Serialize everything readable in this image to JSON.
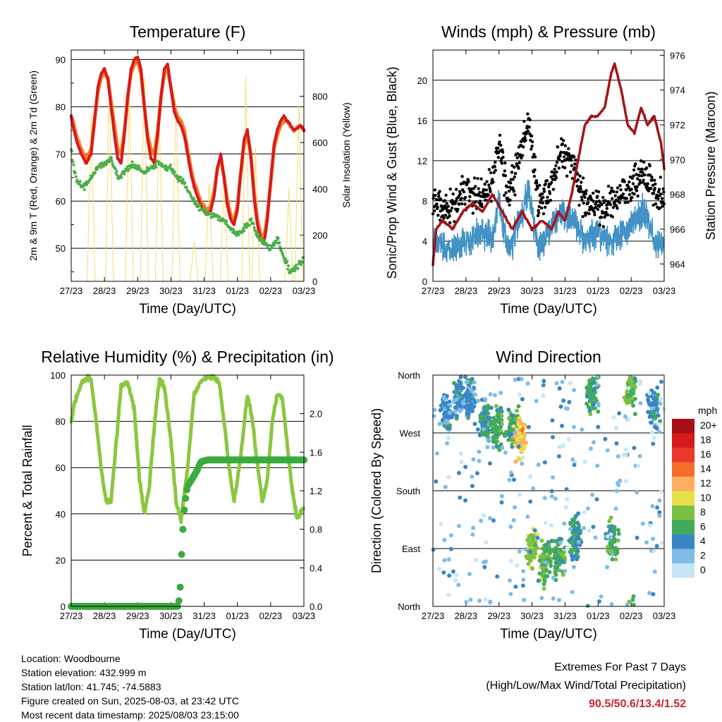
{
  "x_ticks": [
    "27/23",
    "28/23",
    "29/23",
    "30/23",
    "31/23",
    "01/23",
    "02/23",
    "03/23"
  ],
  "chart_data": [
    {
      "type": "line",
      "title": "Temperature (F)",
      "xlabel": "Time (Day/UTC)",
      "ylabel": "2m & 9m T (Red, Orange) & 2m Td (Green)",
      "y2label": "Solar Insolation (Yellow)",
      "ylim": [
        43,
        92
      ],
      "y_ticks": [
        50,
        60,
        70,
        80,
        90
      ],
      "y2lim": [
        0,
        1000
      ],
      "y2_ticks": [
        0,
        200,
        400,
        600,
        800
      ],
      "series": [
        {
          "name": "2m T",
          "color": "#d7191c",
          "x": [
            0,
            0.05,
            0.15,
            0.3,
            0.45,
            0.6,
            0.7,
            0.8,
            0.9,
            1.0,
            1.1,
            1.2,
            1.3,
            1.4,
            1.5,
            1.6,
            1.7,
            1.8,
            1.9,
            2.0,
            2.1,
            2.2,
            2.3,
            2.4,
            2.5,
            2.6,
            2.7,
            2.8,
            2.9,
            3.0,
            3.1,
            3.2,
            3.3,
            3.4,
            3.5,
            3.6,
            3.7,
            3.8,
            3.9,
            4.0,
            4.1,
            4.2,
            4.3,
            4.4,
            4.5,
            4.6,
            4.7,
            4.8,
            4.9,
            5.0,
            5.1,
            5.2,
            5.3,
            5.4,
            5.5,
            5.6,
            5.7,
            5.8,
            5.9,
            6.0,
            6.1,
            6.2,
            6.3,
            6.4,
            6.5,
            6.6,
            6.7,
            6.8,
            6.9,
            7.0
          ],
          "y": [
            78,
            76,
            73,
            70,
            68,
            70,
            77,
            84,
            87,
            88,
            86,
            80,
            74,
            69,
            68,
            74,
            82,
            88,
            90,
            90.5,
            88,
            80,
            73,
            69,
            68,
            74,
            82,
            88,
            89,
            84,
            79,
            77,
            76,
            74,
            70,
            66,
            63,
            61,
            59,
            58,
            57,
            58,
            61,
            67,
            70,
            65,
            59,
            56,
            55,
            58,
            66,
            73,
            75,
            70,
            61,
            55,
            52,
            51,
            56,
            64,
            72,
            75,
            77,
            78,
            77,
            76,
            75,
            75.5,
            76,
            75
          ]
        },
        {
          "name": "9m T",
          "color": "#f67e28",
          "x": [
            0,
            0.05,
            0.15,
            0.3,
            0.45,
            0.6,
            0.7,
            0.8,
            0.9,
            1.0,
            1.1,
            1.2,
            1.3,
            1.4,
            1.5,
            1.6,
            1.7,
            1.8,
            1.9,
            2.0,
            2.1,
            2.2,
            2.3,
            2.4,
            2.5,
            2.6,
            2.7,
            2.8,
            2.9,
            3.0,
            3.1,
            3.2,
            3.3,
            3.4,
            3.5,
            3.6,
            3.7,
            3.8,
            3.9,
            4.0,
            4.1,
            4.2,
            4.3,
            4.4,
            4.5,
            4.6,
            4.7,
            4.8,
            4.9,
            5.0,
            5.1,
            5.2,
            5.3,
            5.4,
            5.5,
            5.6,
            5.7,
            5.8,
            5.9,
            6.0,
            6.1,
            6.2,
            6.3,
            6.4,
            6.5,
            6.6,
            6.7,
            6.8,
            6.9,
            7.0
          ],
          "y": [
            78,
            77,
            74,
            71,
            69,
            71,
            77,
            83,
            86,
            87,
            86,
            81,
            76,
            71,
            70,
            75,
            82,
            87,
            89,
            89.5,
            87,
            80,
            74,
            71,
            70,
            75,
            82,
            87,
            88,
            84,
            80,
            78,
            77,
            75,
            71,
            67,
            64,
            62,
            60,
            59,
            58,
            59,
            62,
            67,
            69,
            65,
            60,
            57,
            56,
            59,
            66,
            72,
            74,
            70,
            62,
            56,
            53,
            52,
            57,
            64,
            71,
            74,
            76,
            77,
            77,
            76,
            75,
            75.5,
            76,
            75
          ]
        },
        {
          "name": "2m Td",
          "color": "#4daf4a",
          "x": [
            0,
            0.1,
            0.2,
            0.4,
            0.6,
            0.8,
            1.0,
            1.2,
            1.4,
            1.6,
            1.8,
            2.0,
            2.2,
            2.4,
            2.6,
            2.8,
            3.0,
            3.2,
            3.4,
            3.6,
            3.8,
            4.0,
            4.2,
            4.4,
            4.6,
            4.8,
            5.0,
            5.2,
            5.4,
            5.6,
            5.8,
            6.0,
            6.2,
            6.4,
            6.6,
            6.8,
            7.0
          ],
          "y": [
            71,
            66,
            64,
            63,
            65,
            67,
            68,
            69,
            65,
            66,
            68,
            67,
            66,
            67,
            68,
            67,
            67,
            65,
            64,
            61,
            59,
            58,
            57,
            57,
            56,
            54,
            53,
            54,
            56,
            53,
            51,
            50,
            52,
            48,
            45,
            46,
            48
          ]
        },
        {
          "name": "Solar Insolation",
          "color": "#f7dc6f",
          "axis": "y2",
          "peaks": [
            [
              0.6,
              740
            ],
            [
              1.15,
              920
            ],
            [
              1.75,
              880
            ],
            [
              2.2,
              960
            ],
            [
              2.65,
              780
            ],
            [
              3.15,
              860
            ],
            [
              3.7,
              190
            ],
            [
              4.15,
              480
            ],
            [
              4.6,
              500
            ],
            [
              5.25,
              920
            ],
            [
              5.55,
              580
            ],
            [
              6.55,
              420
            ],
            [
              6.85,
              860
            ]
          ]
        }
      ]
    },
    {
      "type": "line",
      "title": "Winds (mph) & Pressure (mb)",
      "xlabel": "Time (Day/UTC)",
      "ylabel": "Sonic/Prop Wind & Gust (Blue, Black)",
      "y2label": "Station Pressure (Maroon)",
      "ylim": [
        0,
        23
      ],
      "y_ticks": [
        0,
        4,
        8,
        12,
        16,
        20
      ],
      "y2lim": [
        963,
        976.3
      ],
      "y2_ticks": [
        964,
        966,
        968,
        970,
        972,
        974,
        976
      ],
      "series": [
        {
          "name": "Wind",
          "color": "#4292c6",
          "x": [
            0,
            0.5,
            1.0,
            1.5,
            1.8,
            2.0,
            2.3,
            2.5,
            2.9,
            3.2,
            3.5,
            3.9,
            4.3,
            4.6,
            5.0,
            5.4,
            5.8,
            6.1,
            6.4,
            6.7,
            7.0
          ],
          "y": [
            4,
            3,
            4,
            5,
            4,
            8,
            3,
            5,
            9,
            3,
            5,
            7,
            6,
            4,
            5,
            4,
            5,
            6,
            7,
            4,
            4
          ]
        },
        {
          "name": "Gust",
          "color": "#000000",
          "x": [
            0,
            0.5,
            1.0,
            1.5,
            1.8,
            2.0,
            2.3,
            2.5,
            2.9,
            3.2,
            3.5,
            3.9,
            4.3,
            4.6,
            5.0,
            5.4,
            5.8,
            6.1,
            6.4,
            6.7,
            7.0
          ],
          "y": [
            8,
            7,
            9,
            8,
            10,
            14,
            8,
            11,
            16,
            8,
            9,
            13,
            11,
            8,
            7,
            8,
            9,
            10,
            11,
            9,
            8
          ]
        },
        {
          "name": "Pressure",
          "color": "#a3151a",
          "axis": "y2",
          "x": [
            0,
            0.1,
            0.3,
            0.6,
            0.9,
            1.2,
            1.5,
            1.8,
            2.1,
            2.4,
            2.7,
            3.0,
            3.3,
            3.6,
            3.8,
            4.0,
            4.2,
            4.4,
            4.6,
            4.8,
            5.0,
            5.2,
            5.4,
            5.5,
            5.7,
            5.9,
            6.1,
            6.3,
            6.5,
            6.7,
            6.9,
            7.0
          ],
          "y": [
            964,
            966,
            966.5,
            966,
            967,
            967.5,
            967,
            968,
            967,
            966,
            967,
            966,
            966.5,
            966,
            967,
            966.5,
            968,
            970,
            972,
            972.5,
            972.5,
            973,
            975,
            975.5,
            974,
            972,
            971.5,
            973,
            972,
            972.5,
            971,
            969.5
          ]
        }
      ]
    },
    {
      "type": "line",
      "title": "Relative Humidity (%) & Precipitation (in)",
      "xlabel": "Time (Day/UTC)",
      "ylabel": "Percent & Total Rainfall",
      "ylim": [
        0,
        100
      ],
      "y_ticks": [
        0,
        20,
        40,
        60,
        80,
        100
      ],
      "y2lim": [
        0,
        2.4
      ],
      "y2_ticks": [
        "0.0",
        "0.4",
        "0.8",
        "1.2",
        "1.6",
        "2.0"
      ],
      "series": [
        {
          "name": "Relative Humidity",
          "color": "#8cc63f",
          "x": [
            0,
            0.1,
            0.3,
            0.45,
            0.6,
            0.75,
            0.9,
            1.05,
            1.2,
            1.35,
            1.5,
            1.7,
            1.9,
            2.05,
            2.2,
            2.35,
            2.5,
            2.65,
            2.8,
            3.0,
            3.15,
            3.3,
            3.5,
            3.7,
            3.9,
            4.1,
            4.3,
            4.45,
            4.6,
            4.75,
            4.9,
            5.1,
            5.3,
            5.45,
            5.6,
            5.75,
            5.9,
            6.05,
            6.2,
            6.35,
            6.5,
            6.65,
            6.8,
            7.0
          ],
          "y": [
            80,
            88,
            96,
            99,
            98,
            80,
            60,
            45,
            46,
            70,
            95,
            97,
            85,
            55,
            40,
            52,
            78,
            98,
            95,
            72,
            46,
            37,
            60,
            92,
            97,
            99,
            99,
            97,
            80,
            60,
            45,
            65,
            92,
            80,
            62,
            45,
            55,
            80,
            92,
            90,
            70,
            50,
            38,
            43
          ]
        },
        {
          "name": "Total Precipitation",
          "color": "#3aab3f",
          "x": [
            0,
            3.2,
            3.27,
            3.3,
            3.35,
            3.4,
            3.45,
            3.5,
            3.6,
            3.7,
            3.8,
            3.9,
            4.1,
            4.5,
            5.0,
            6.0,
            7.0
          ],
          "y": [
            0,
            0,
            0.1,
            0.4,
            0.75,
            1.0,
            1.15,
            1.25,
            1.3,
            1.36,
            1.42,
            1.5,
            1.52,
            1.52,
            1.52,
            1.52,
            1.52
          ]
        }
      ]
    },
    {
      "type": "scatter",
      "title": "Wind Direction",
      "xlabel": "Time (Day/UTC)",
      "ylabel": "Direction (Colored By Speed)",
      "y_ticks": [
        "North",
        "West",
        "South",
        "East",
        "North"
      ],
      "legend": {
        "title": "mph",
        "position": "right",
        "labels": [
          "20+",
          "18",
          "16",
          "14",
          "12",
          "10",
          "8",
          "6",
          "4",
          "2",
          "0"
        ],
        "colors": [
          "#a50f15",
          "#d7191c",
          "#e8392b",
          "#f46d2b",
          "#fdae61",
          "#e6e14a",
          "#7bc043",
          "#41ab5d",
          "#3a86c4",
          "#7fbce8",
          "#c6e6f7"
        ]
      },
      "clusters": [
        {
          "x": 0.4,
          "dir": 300,
          "speed": 3
        },
        {
          "x": 0.8,
          "dir": 330,
          "speed": 4
        },
        {
          "x": 1.1,
          "dir": 320,
          "speed": 4
        },
        {
          "x": 1.6,
          "dir": 290,
          "speed": 5
        },
        {
          "x": 1.95,
          "dir": 280,
          "speed": 6
        },
        {
          "x": 2.4,
          "dir": 280,
          "speed": 6
        },
        {
          "x": 2.65,
          "dir": 260,
          "speed": 11
        },
        {
          "x": 3.0,
          "dir": 90,
          "speed": 8
        },
        {
          "x": 3.4,
          "dir": 70,
          "speed": 7
        },
        {
          "x": 3.8,
          "dir": 80,
          "speed": 6
        },
        {
          "x": 4.3,
          "dir": 110,
          "speed": 5
        },
        {
          "x": 4.8,
          "dir": 330,
          "speed": 6
        },
        {
          "x": 5.4,
          "dir": 100,
          "speed": 6
        },
        {
          "x": 6.0,
          "dir": 340,
          "speed": 7
        },
        {
          "x": 6.7,
          "dir": 310,
          "speed": 4
        }
      ]
    }
  ],
  "info": {
    "location": "Location: Woodbourne",
    "elevation": "Station elevation: 432.999 m",
    "latlon": "Station lat/lon: 41.745; -74.5883",
    "created": "Figure created on Sun, 2025-08-03, at 23:42 UTC",
    "recent": "Most recent data timestamp: 2025/08/03 23:15:00"
  },
  "extremes": {
    "line1": "Extremes For Past 7 Days",
    "line2": "(High/Low/Max Wind/Total Precipitation)",
    "value": "90.5/50.6/13.4/1.52"
  }
}
